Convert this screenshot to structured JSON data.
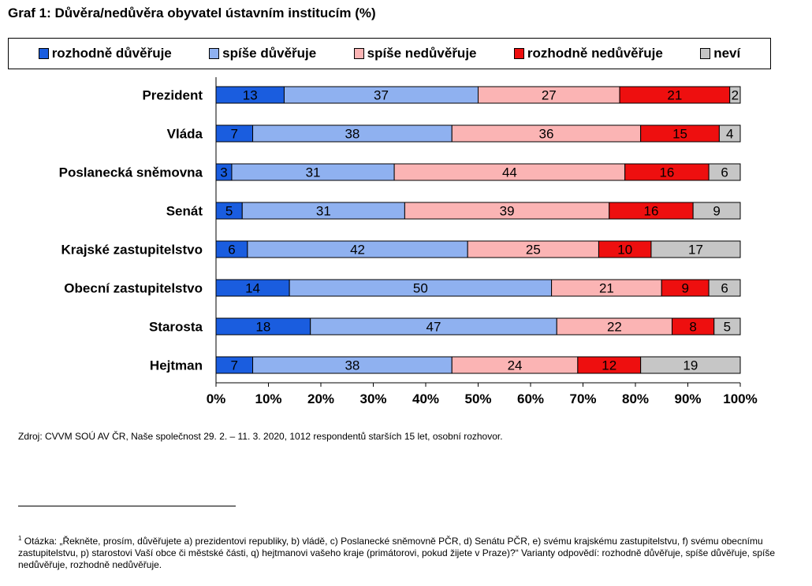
{
  "title": "Graf 1: Důvěra/nedůvěra obyvatel ústavním institucím (%)",
  "chart_data": {
    "type": "bar",
    "orientation": "horizontal",
    "stacked": true,
    "percent_stacked": true,
    "categories": [
      "Prezident",
      "Vláda",
      "Poslanecká sněmovna",
      "Senát",
      "Krajské zastupitelstvo",
      "Obecní zastupitelstvo",
      "Starosta",
      "Hejtman"
    ],
    "series": [
      {
        "name": "rozhodně důvěřuje",
        "color": "#1a5ddf",
        "values": [
          13,
          7,
          3,
          5,
          6,
          14,
          18,
          7
        ]
      },
      {
        "name": "spíše důvěřuje",
        "color": "#8fb1f0",
        "values": [
          37,
          38,
          31,
          31,
          42,
          50,
          47,
          38
        ]
      },
      {
        "name": "spíše nedůvěřuje",
        "color": "#fbb4b4",
        "values": [
          27,
          36,
          44,
          39,
          25,
          21,
          22,
          24
        ]
      },
      {
        "name": "rozhodně nedůvěřuje",
        "color": "#ee0f0f",
        "values": [
          21,
          15,
          16,
          16,
          10,
          9,
          8,
          12
        ]
      },
      {
        "name": "neví",
        "color": "#c6c6c6",
        "values": [
          2,
          4,
          6,
          9,
          17,
          6,
          5,
          19
        ]
      }
    ],
    "x_ticks": [
      "0%",
      "10%",
      "20%",
      "30%",
      "40%",
      "50%",
      "60%",
      "70%",
      "80%",
      "90%",
      "100%"
    ],
    "xlim": [
      0,
      100
    ],
    "legend_position": "top",
    "data_labels": true
  },
  "source": "Zdroj: CVVM SOÚ AV ČR, Naše společnost 29. 2. – 11. 3. 2020, 1012 respondentů starších 15 let, osobní rozhovor.",
  "footnote": {
    "marker": "1",
    "text": " Otázka: „Řekněte, prosím, důvěřujete a) prezidentovi republiky, b) vládě, c) Poslanecké sněmovně PČR, d) Senátu PČR, e) svému krajskému zastupitelstvu, f) svému obecnímu zastupitelstvu, p) starostovi Vaší obce či městské části, q) hejtmanovi vašeho kraje (primátorovi, pokud žijete v Praze)?“ Varianty odpovědí: rozhodně důvěřuje, spíše důvěřuje, spíše nedůvěřuje, rozhodně nedůvěřuje."
  }
}
